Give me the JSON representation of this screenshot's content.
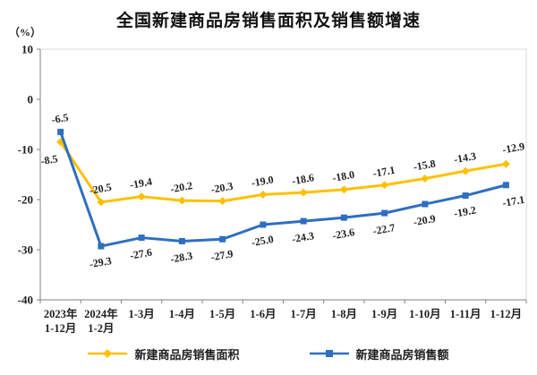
{
  "title": "全国新建商品房销售面积及销售额增速",
  "unit_label": "（%）",
  "chart_data": {
    "type": "line",
    "categories": [
      [
        "2023年",
        "1-12月"
      ],
      [
        "2024年",
        "1-2月"
      ],
      [
        "1-3月"
      ],
      [
        "1-4月"
      ],
      [
        "1-5月"
      ],
      [
        "1-6月"
      ],
      [
        "1-7月"
      ],
      [
        "1-8月"
      ],
      [
        "1-9月"
      ],
      [
        "1-10月"
      ],
      [
        "1-11月"
      ],
      [
        "1-12月"
      ]
    ],
    "series": [
      {
        "name": "新建商品房销售面积",
        "color": "#FFC000",
        "marker": "diamond",
        "label_position": "above",
        "first_label_position": "below-left",
        "values": [
          -8.5,
          -20.5,
          -19.4,
          -20.2,
          -20.3,
          -19.0,
          -18.6,
          -18.0,
          -17.1,
          -15.8,
          -14.3,
          -12.9
        ],
        "labels": [
          "-8.5",
          "-20.5",
          "-19.4",
          "-20.2",
          "-20.3",
          "-19.0",
          "-18.6",
          "-18.0",
          "-17.1",
          "-15.8",
          "-14.3",
          "-12.9"
        ]
      },
      {
        "name": "新建商品房销售额",
        "color": "#2E6FC1",
        "marker": "square",
        "label_position": "below",
        "first_label_position": "above",
        "values": [
          -6.5,
          -29.3,
          -27.6,
          -28.3,
          -27.9,
          -25.0,
          -24.3,
          -23.6,
          -22.7,
          -20.9,
          -19.2,
          -17.1
        ],
        "labels": [
          "-6.5",
          "-29.3",
          "-27.6",
          "-28.3",
          "-27.9",
          "-25.0",
          "-24.3",
          "-23.6",
          "-22.7",
          "-20.9",
          "-19.2",
          "-17.1"
        ]
      }
    ],
    "ylim": [
      -40,
      10
    ],
    "yticks": [
      10,
      0,
      -10,
      -20,
      -30,
      -40
    ],
    "grid": false,
    "legend_position": "bottom",
    "axis_color": "#808080",
    "border_color": "#D9D9D9",
    "label_color": "#1f1f1f"
  }
}
